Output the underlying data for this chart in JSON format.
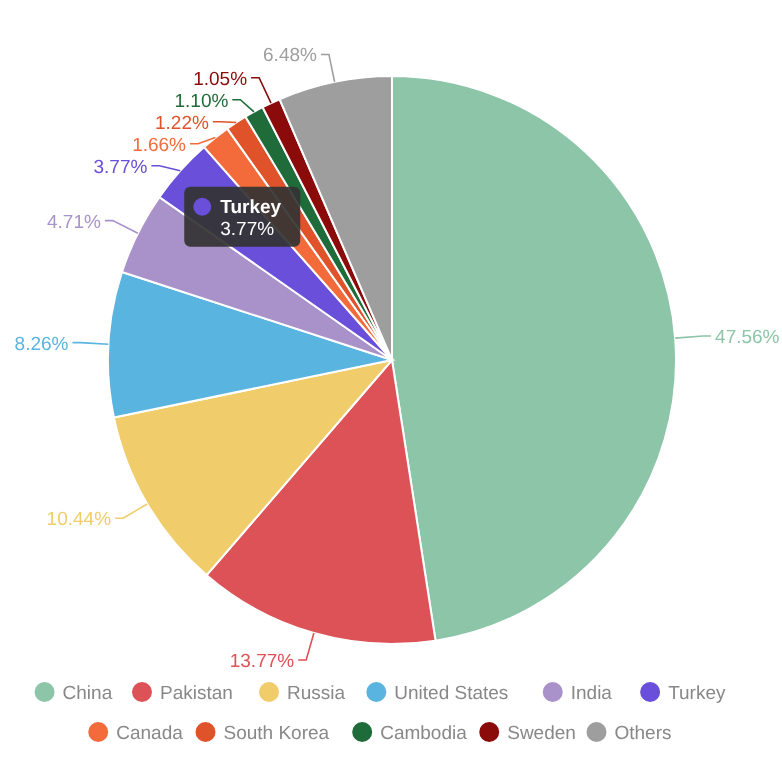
{
  "chart_data": {
    "type": "pie",
    "categories": [
      "China",
      "Pakistan",
      "Russia",
      "United States",
      "India",
      "Turkey",
      "Canada",
      "South Korea",
      "Cambodia",
      "Sweden",
      "Others"
    ],
    "values": [
      47.56,
      13.77,
      10.44,
      8.26,
      4.71,
      3.77,
      1.66,
      1.22,
      1.1,
      1.05,
      6.48
    ],
    "value_labels": [
      "47.56%",
      "13.77%",
      "10.44%",
      "8.26%",
      "4.71%",
      "3.77%",
      "1.66%",
      "1.22%",
      "1.10%",
      "1.05%",
      "6.48%"
    ],
    "colors": [
      "#8cc5a8",
      "#dc5257",
      "#f0cd6a",
      "#5ab4e0",
      "#a992c9",
      "#6a4fdb",
      "#f36b3b",
      "#e0522a",
      "#1f6b3a",
      "#8b0a0a",
      "#9e9e9e"
    ],
    "legend": "bottom",
    "annotations": [
      "Turkey",
      "3.77%"
    ]
  }
}
